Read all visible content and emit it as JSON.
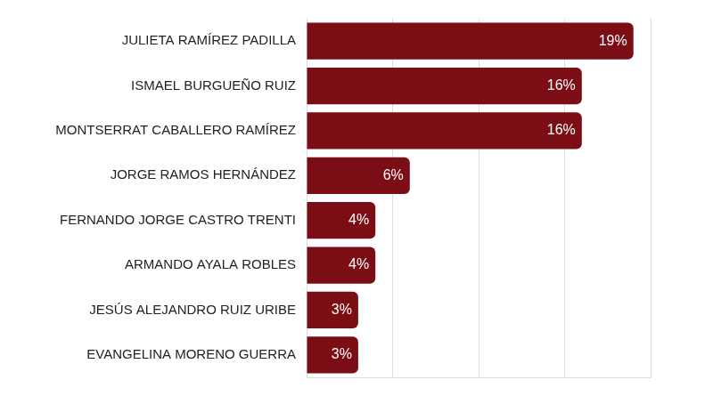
{
  "chart_data": {
    "type": "bar",
    "orientation": "horizontal",
    "categories": [
      "JULIETA RAMÍREZ PADILLA",
      "ISMAEL BURGUEÑO RUIZ",
      "MONTSERRAT CABALLERO RAMÍREZ",
      "JORGE RAMOS HERNÁNDEZ",
      "FERNANDO JORGE CASTRO TRENTI",
      "ARMANDO AYALA ROBLES",
      "JESÚS ALEJANDRO RUIZ URIBE",
      "EVANGELINA MORENO GUERRA"
    ],
    "values": [
      19,
      16,
      16,
      6,
      4,
      4,
      3,
      3
    ],
    "value_labels": [
      "19%",
      "16%",
      "16%",
      "6%",
      "4%",
      "4%",
      "3%",
      "3%"
    ],
    "color": "#7b0d15",
    "xlim": [
      0,
      20
    ],
    "xticks": [
      0,
      5,
      10,
      15,
      20
    ],
    "grid": true,
    "data_labels": true,
    "tick_labels": "y"
  }
}
